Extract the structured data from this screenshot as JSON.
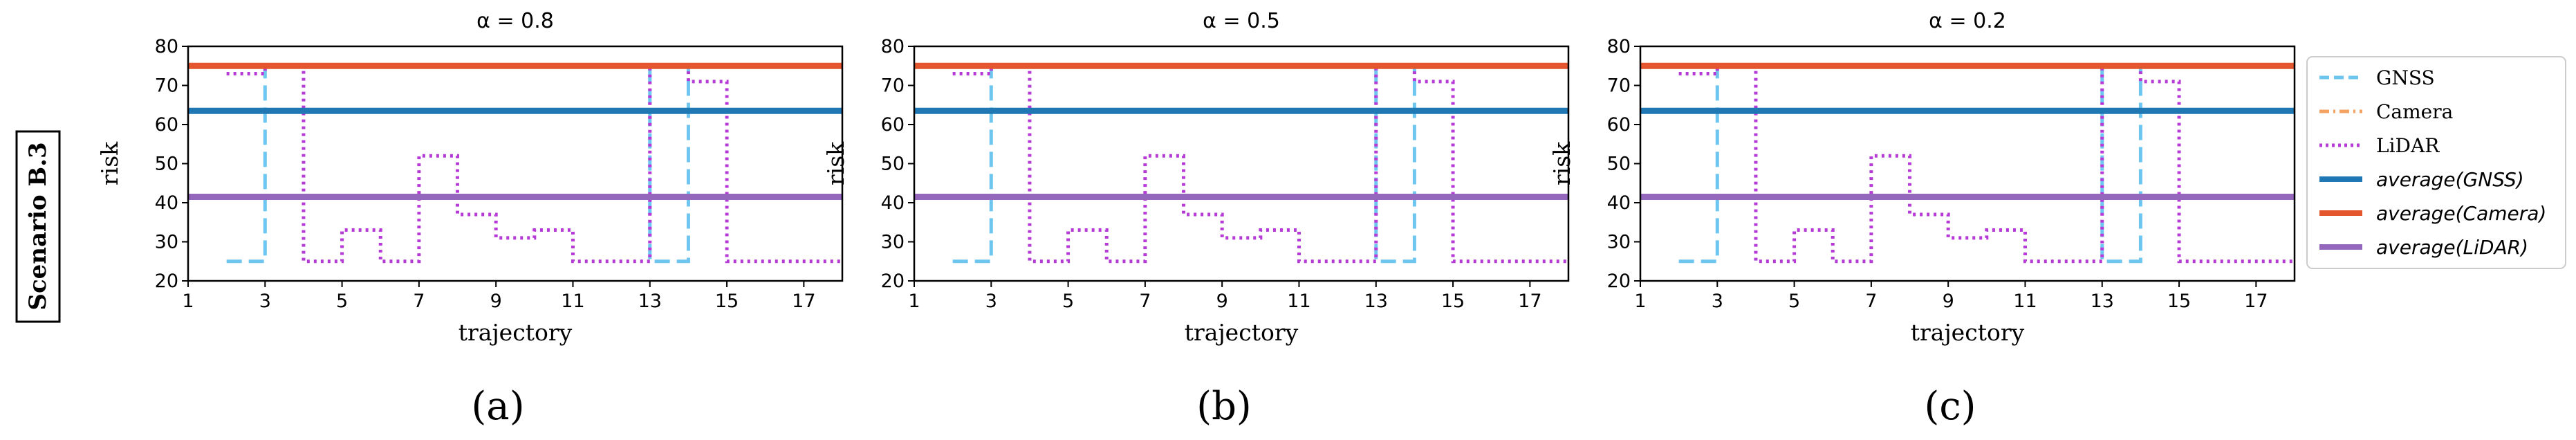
{
  "row_label": "Scenario B.3",
  "panel_captions": [
    "(a)",
    "(b)",
    "(c)"
  ],
  "colors": {
    "gnss": "#6EC6F0",
    "camera": "#F4A261",
    "lidar": "#B53AD6",
    "avg_gnss": "#1F77B4",
    "avg_camera": "#E4572E",
    "avg_lidar": "#9467BD"
  },
  "chart_data": [
    {
      "type": "line",
      "title": "α = 0.8",
      "xlabel": "trajectory",
      "ylabel": "risk",
      "xlim": [
        1,
        18
      ],
      "ylim": [
        20,
        80
      ],
      "xticks": [
        1,
        3,
        5,
        7,
        9,
        11,
        13,
        15,
        17
      ],
      "yticks": [
        20,
        30,
        40,
        50,
        60,
        70,
        80
      ],
      "legend": null,
      "series": [
        {
          "name": "GNSS",
          "style": "dashed",
          "step": true,
          "x": [
            2,
            3,
            13,
            14,
            17,
            18
          ],
          "y": [
            25,
            75,
            25,
            75,
            75,
            75
          ]
        },
        {
          "name": "Camera",
          "style": "dashdot",
          "step": true,
          "x": [
            1,
            18
          ],
          "y": [
            75,
            75
          ]
        },
        {
          "name": "LiDAR",
          "style": "dotted",
          "step": true,
          "x": [
            2,
            3,
            4,
            5,
            6,
            7,
            8,
            9,
            10,
            11,
            12,
            13,
            14,
            15,
            18
          ],
          "y": [
            73,
            75,
            25,
            33,
            25,
            52,
            37,
            31,
            33,
            25,
            25,
            75,
            71,
            25,
            25
          ]
        },
        {
          "name": "average(GNSS)",
          "style": "solid",
          "x": [
            1,
            18
          ],
          "y": [
            63.5,
            63.5
          ]
        },
        {
          "name": "average(Camera)",
          "style": "solid",
          "x": [
            1,
            18
          ],
          "y": [
            75,
            75
          ]
        },
        {
          "name": "average(LiDAR)",
          "style": "solid",
          "x": [
            1,
            18
          ],
          "y": [
            41.5,
            41.5
          ]
        }
      ]
    },
    {
      "type": "line",
      "title": "α = 0.5",
      "xlabel": "trajectory",
      "ylabel": "risk",
      "xlim": [
        1,
        18
      ],
      "ylim": [
        20,
        80
      ],
      "xticks": [
        1,
        3,
        5,
        7,
        9,
        11,
        13,
        15,
        17
      ],
      "yticks": [
        20,
        30,
        40,
        50,
        60,
        70,
        80
      ],
      "legend": null,
      "series": [
        {
          "name": "GNSS",
          "style": "dashed",
          "step": true,
          "x": [
            2,
            3,
            13,
            14,
            17,
            18
          ],
          "y": [
            25,
            75,
            25,
            75,
            75,
            75
          ]
        },
        {
          "name": "Camera",
          "style": "dashdot",
          "step": true,
          "x": [
            1,
            18
          ],
          "y": [
            75,
            75
          ]
        },
        {
          "name": "LiDAR",
          "style": "dotted",
          "step": true,
          "x": [
            2,
            3,
            4,
            5,
            6,
            7,
            8,
            9,
            10,
            11,
            12,
            13,
            14,
            15,
            18
          ],
          "y": [
            73,
            75,
            25,
            33,
            25,
            52,
            37,
            31,
            33,
            25,
            25,
            75,
            71,
            25,
            25
          ]
        },
        {
          "name": "average(GNSS)",
          "style": "solid",
          "x": [
            1,
            18
          ],
          "y": [
            63.5,
            63.5
          ]
        },
        {
          "name": "average(Camera)",
          "style": "solid",
          "x": [
            1,
            18
          ],
          "y": [
            75,
            75
          ]
        },
        {
          "name": "average(LiDAR)",
          "style": "solid",
          "x": [
            1,
            18
          ],
          "y": [
            41.5,
            41.5
          ]
        }
      ]
    },
    {
      "type": "line",
      "title": "α = 0.2",
      "xlabel": "trajectory",
      "ylabel": "risk",
      "xlim": [
        1,
        18
      ],
      "ylim": [
        20,
        80
      ],
      "xticks": [
        1,
        3,
        5,
        7,
        9,
        11,
        13,
        15,
        17
      ],
      "yticks": [
        20,
        30,
        40,
        50,
        60,
        70,
        80
      ],
      "legend": "right",
      "series": [
        {
          "name": "GNSS",
          "style": "dashed",
          "step": true,
          "x": [
            2,
            3,
            13,
            14,
            17,
            18
          ],
          "y": [
            25,
            75,
            25,
            75,
            75,
            75
          ]
        },
        {
          "name": "Camera",
          "style": "dashdot",
          "step": true,
          "x": [
            1,
            18
          ],
          "y": [
            75,
            75
          ]
        },
        {
          "name": "LiDAR",
          "style": "dotted",
          "step": true,
          "x": [
            2,
            3,
            4,
            5,
            6,
            7,
            8,
            9,
            10,
            11,
            12,
            13,
            14,
            15,
            18
          ],
          "y": [
            73,
            75,
            25,
            33,
            25,
            52,
            37,
            31,
            33,
            25,
            25,
            75,
            71,
            25,
            25
          ]
        },
        {
          "name": "average(GNSS)",
          "style": "solid",
          "x": [
            1,
            18
          ],
          "y": [
            63.5,
            63.5
          ]
        },
        {
          "name": "average(Camera)",
          "style": "solid",
          "x": [
            1,
            18
          ],
          "y": [
            75,
            75
          ]
        },
        {
          "name": "average(LiDAR)",
          "style": "solid",
          "x": [
            1,
            18
          ],
          "y": [
            41.5,
            41.5
          ]
        }
      ]
    }
  ]
}
